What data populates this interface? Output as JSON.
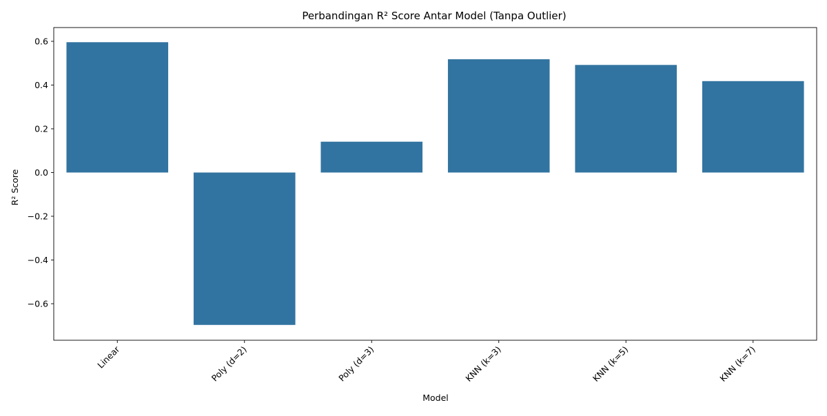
{
  "chart_data": {
    "type": "bar",
    "title": "Perbandingan R² Score Antar Model (Tanpa Outlier)",
    "xlabel": "Model",
    "ylabel": "R² Score",
    "categories": [
      "Linear",
      "Poly (d=2)",
      "Poly (d=3)",
      "KNN (k=3)",
      "KNN (k=5)",
      "KNN (k=7)"
    ],
    "values": [
      0.596,
      -0.697,
      0.141,
      0.518,
      0.492,
      0.418
    ],
    "ylim": [
      -0.767,
      0.663
    ],
    "yticks": [
      -0.6,
      -0.4,
      -0.2,
      0.0,
      0.2,
      0.4,
      0.6
    ],
    "ytick_labels": [
      "−0.6",
      "−0.4",
      "−0.2",
      "0.0",
      "0.2",
      "0.4",
      "0.6"
    ],
    "xtick_rotation": 45,
    "grid": false,
    "bar_color": "#3274a1"
  }
}
